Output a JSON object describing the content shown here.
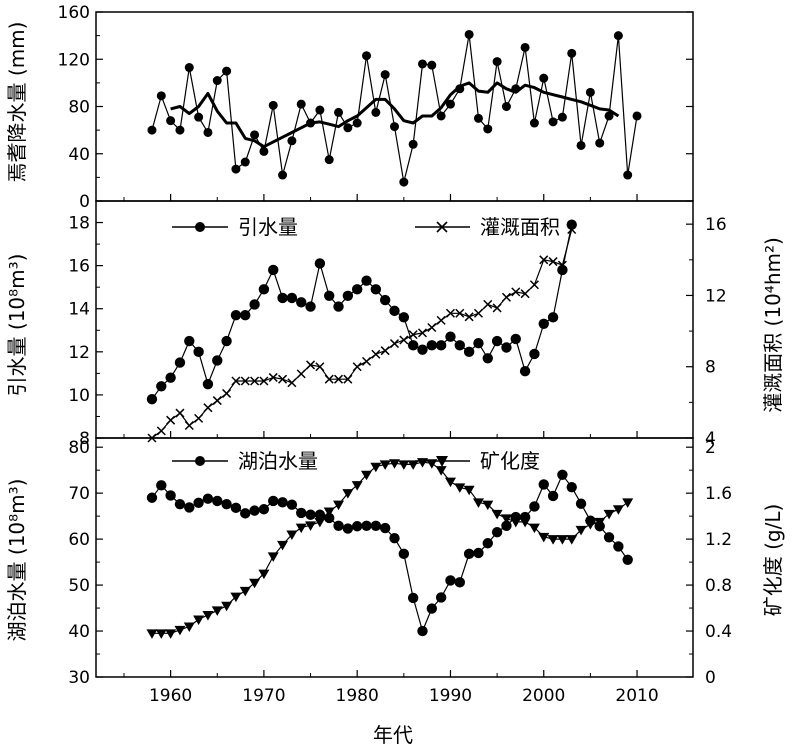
{
  "chart_data": [
    {
      "type": "line",
      "ylabel": "焉耆降水量 (mm)",
      "ylim": [
        0,
        160
      ],
      "y_ticks": [
        0,
        40,
        80,
        120,
        160
      ],
      "series": [
        {
          "x": [
            1958,
            1959,
            1960,
            1961,
            1962,
            1963,
            1964,
            1965,
            1966,
            1967,
            1968,
            1969,
            1970,
            1971,
            1972,
            1973,
            1974,
            1975,
            1976,
            1977,
            1978,
            1979,
            1980,
            1981,
            1982,
            1983,
            1984,
            1985,
            1986,
            1987,
            1988,
            1989,
            1990,
            1991,
            1992,
            1993,
            1994,
            1995,
            1996,
            1997,
            1998,
            1999,
            2000,
            2001,
            2002,
            2003,
            2004,
            2005,
            2006,
            2007,
            2008,
            2009,
            2010
          ],
          "values": [
            60,
            89,
            68,
            60,
            113,
            71,
            58,
            102,
            110,
            27,
            33,
            56,
            42,
            81,
            22,
            51,
            82,
            66,
            77,
            35,
            75,
            62,
            66,
            123,
            75,
            107,
            63,
            16,
            48,
            116,
            115,
            72,
            82,
            95,
            141,
            70,
            61,
            118,
            80,
            95,
            130,
            66,
            104,
            67,
            71,
            125,
            47,
            92,
            49,
            72,
            140,
            22,
            72
          ]
        },
        {
          "x": [
            1960,
            1961,
            1962,
            1963,
            1964,
            1965,
            1966,
            1967,
            1968,
            1969,
            1970,
            1971,
            1972,
            1973,
            1974,
            1975,
            1976,
            1977,
            1978,
            1979,
            1980,
            1981,
            1982,
            1983,
            1984,
            1985,
            1986,
            1987,
            1988,
            1989,
            1990,
            1991,
            1992,
            1993,
            1994,
            1995,
            1996,
            1997,
            1998,
            1999,
            2000,
            2001,
            2002,
            2003,
            2004,
            2005,
            2006,
            2007,
            2008
          ],
          "values": [
            78,
            80,
            74,
            80,
            91,
            76,
            66,
            66,
            53,
            51,
            46,
            50,
            54,
            58,
            62,
            66,
            67,
            65,
            63,
            68,
            72,
            79,
            86,
            86,
            78,
            68,
            66,
            72,
            72,
            79,
            90,
            97,
            100,
            93,
            92,
            100,
            95,
            92,
            98,
            96,
            92,
            90,
            88,
            86,
            84,
            81,
            78,
            77,
            72
          ]
        }
      ]
    },
    {
      "type": "line",
      "ylabel": "引水量 (10⁸m³)",
      "ylabel_right": "灌溉面积 (10⁴hm²)",
      "ylim": [
        8,
        19
      ],
      "y_ticks": [
        8,
        10,
        12,
        14,
        16,
        18
      ],
      "y2lim": [
        4,
        17.3
      ],
      "y2_ticks": [
        4,
        8,
        12,
        16
      ],
      "legend": [
        "引水量",
        "灌溉面积"
      ],
      "series": [
        {
          "name": "引水量",
          "axis": "left",
          "x": [
            1958,
            1959,
            1960,
            1961,
            1962,
            1963,
            1964,
            1965,
            1966,
            1967,
            1968,
            1969,
            1970,
            1971,
            1972,
            1973,
            1974,
            1975,
            1976,
            1977,
            1978,
            1979,
            1980,
            1981,
            1982,
            1983,
            1984,
            1985,
            1986,
            1987,
            1988,
            1989,
            1990,
            1991,
            1992,
            1993,
            1994,
            1995,
            1996,
            1997,
            1998,
            1999,
            2000,
            2001,
            2002,
            2003
          ],
          "values": [
            9.8,
            10.4,
            10.8,
            11.5,
            12.5,
            12.0,
            10.5,
            11.6,
            12.5,
            13.7,
            13.7,
            14.2,
            14.9,
            15.8,
            14.5,
            14.5,
            14.3,
            14.1,
            16.1,
            14.6,
            14.1,
            14.6,
            14.9,
            15.3,
            14.9,
            14.4,
            13.9,
            13.6,
            12.3,
            12.1,
            12.3,
            12.3,
            12.7,
            12.3,
            12.0,
            12.4,
            11.7,
            12.5,
            12.2,
            12.6,
            11.1,
            11.9,
            13.3,
            13.6,
            15.8,
            17.9
          ]
        },
        {
          "name": "灌溉面积",
          "axis": "right",
          "x": [
            1958,
            1959,
            1960,
            1961,
            1962,
            1963,
            1964,
            1965,
            1966,
            1967,
            1968,
            1969,
            1970,
            1971,
            1972,
            1973,
            1974,
            1975,
            1976,
            1977,
            1978,
            1979,
            1980,
            1981,
            1982,
            1983,
            1984,
            1985,
            1986,
            1987,
            1988,
            1989,
            1990,
            1991,
            1992,
            1993,
            1994,
            1995,
            1996,
            1997,
            1998,
            1999,
            2000,
            2001,
            2002,
            2003
          ],
          "values": [
            4.0,
            4.4,
            5.0,
            5.4,
            4.7,
            5.1,
            5.7,
            6.1,
            6.5,
            7.2,
            7.2,
            7.2,
            7.2,
            7.4,
            7.3,
            7.1,
            7.6,
            8.1,
            8.0,
            7.3,
            7.3,
            7.3,
            8.0,
            8.3,
            8.7,
            8.9,
            9.3,
            9.5,
            9.8,
            9.9,
            10.2,
            10.6,
            11.0,
            11.0,
            10.8,
            11.0,
            11.5,
            11.3,
            11.9,
            12.2,
            12.1,
            12.6,
            14.0,
            13.9,
            13.7,
            15.7
          ]
        }
      ]
    },
    {
      "type": "line",
      "xlabel": "年代",
      "xlim": [
        1952,
        2016
      ],
      "x_ticks": [
        1960,
        1970,
        1980,
        1990,
        2000,
        2010
      ],
      "ylabel": "湖泊水量 (10⁸m³)",
      "ylabel_right": "矿化度 (g/L)",
      "ylim": [
        30,
        82
      ],
      "y_ticks": [
        30,
        40,
        50,
        60,
        70,
        80
      ],
      "y2lim": [
        0,
        2.08
      ],
      "y2_ticks": [
        0,
        0.4,
        0.8,
        1.2,
        1.6,
        2
      ],
      "legend": [
        "湖泊水量",
        "矿化度"
      ],
      "series": [
        {
          "name": "湖泊水量",
          "axis": "left",
          "x": [
            1958,
            1959,
            1960,
            1961,
            1962,
            1963,
            1964,
            1965,
            1966,
            1967,
            1968,
            1969,
            1970,
            1971,
            1972,
            1973,
            1974,
            1975,
            1976,
            1977,
            1978,
            1979,
            1980,
            1981,
            1982,
            1983,
            1984,
            1985,
            1986,
            1987,
            1988,
            1989,
            1990,
            1991,
            1992,
            1993,
            1994,
            1995,
            1996,
            1997,
            1998,
            1999,
            2000,
            2001,
            2002,
            2003,
            2004,
            2005,
            2006,
            2007,
            2008,
            2009
          ],
          "values": [
            69.0,
            71.7,
            69.5,
            67.6,
            66.9,
            67.9,
            68.8,
            68.3,
            67.6,
            66.8,
            65.6,
            66.2,
            66.5,
            68.3,
            68.0,
            67.5,
            65.7,
            65.3,
            65.3,
            64.6,
            62.9,
            62.3,
            62.8,
            62.9,
            62.9,
            62.4,
            60.2,
            56.8,
            47.2,
            40.0,
            44.9,
            47.3,
            51.0,
            50.6,
            56.8,
            57.0,
            59.1,
            61.5,
            62.9,
            64.8,
            64.8,
            67.1,
            71.9,
            69.4,
            74.0,
            71.3,
            67.7,
            64.0,
            62.8,
            60.4,
            58.4,
            55.5
          ]
        },
        {
          "name": "矿化度",
          "axis": "right",
          "x": [
            1958,
            1959,
            1960,
            1961,
            1962,
            1963,
            1964,
            1965,
            1966,
            1967,
            1968,
            1969,
            1970,
            1971,
            1972,
            1973,
            1974,
            1975,
            1976,
            1977,
            1978,
            1979,
            1980,
            1981,
            1982,
            1983,
            1984,
            1985,
            1986,
            1987,
            1988,
            1989,
            1990,
            1991,
            1992,
            1993,
            1994,
            1995,
            1996,
            1997,
            1998,
            1999,
            2000,
            2001,
            2002,
            2003,
            2004,
            2005,
            2006,
            2007,
            2008,
            2009
          ],
          "values": [
            0.38,
            0.38,
            0.38,
            0.41,
            0.44,
            0.5,
            0.54,
            0.58,
            0.62,
            0.7,
            0.75,
            0.82,
            0.9,
            1.05,
            1.15,
            1.24,
            1.3,
            1.32,
            1.35,
            1.44,
            1.5,
            1.6,
            1.67,
            1.76,
            1.83,
            1.85,
            1.86,
            1.85,
            1.85,
            1.87,
            1.86,
            1.8,
            1.7,
            1.65,
            1.63,
            1.52,
            1.5,
            1.42,
            1.38,
            1.35,
            1.35,
            1.3,
            1.22,
            1.2,
            1.2,
            1.2,
            1.28,
            1.33,
            1.35,
            1.42,
            1.46,
            1.52
          ]
        }
      ]
    }
  ]
}
